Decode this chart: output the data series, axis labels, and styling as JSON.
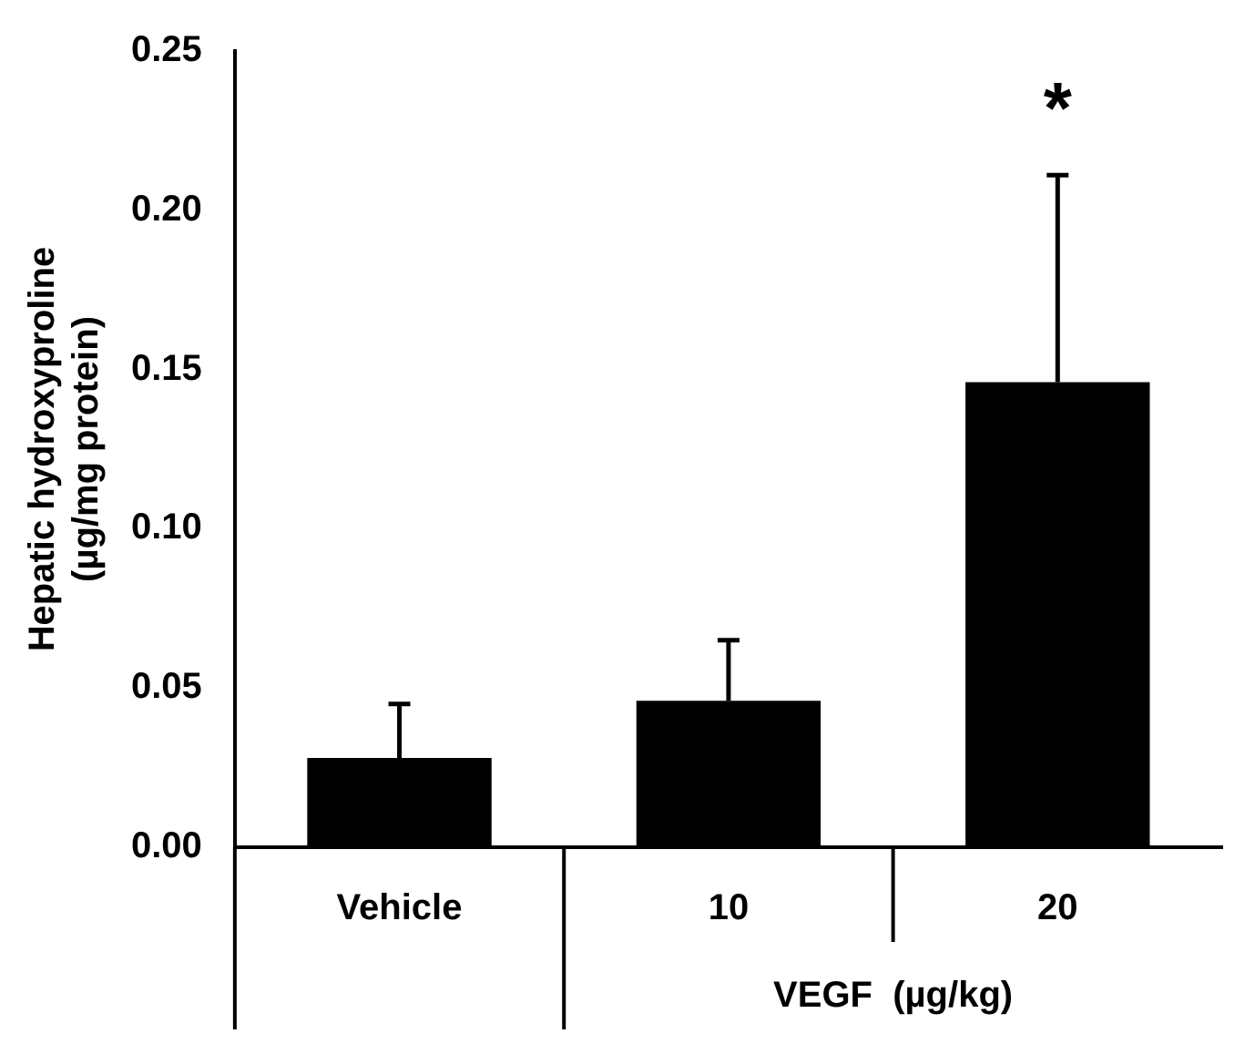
{
  "chart_data": {
    "type": "bar",
    "ylabel": "Hepatic hydroxyproline\n(µg/mg protein)",
    "xlabel": "VEGF  (µg/kg)",
    "categories": [
      "Vehicle",
      "10",
      "20"
    ],
    "values": [
      0.028,
      0.046,
      0.146
    ],
    "errors": [
      [
        0.028,
        0.045
      ],
      [
        0.046,
        0.065
      ],
      [
        0.146,
        0.211
      ]
    ],
    "color": "#000000",
    "ylim": [
      0,
      0.25
    ],
    "yticks": [
      {
        "value": 0,
        "label": "0.00"
      },
      {
        "value": 0.05,
        "label": "0.05"
      },
      {
        "value": 0.1,
        "label": "0.10"
      },
      {
        "value": 0.15,
        "label": "0.15"
      },
      {
        "value": 0.2,
        "label": "0.20"
      },
      {
        "value": 0.25,
        "label": "0.25"
      }
    ],
    "grid": false,
    "legend": false,
    "annotations": [
      "*"
    ]
  }
}
